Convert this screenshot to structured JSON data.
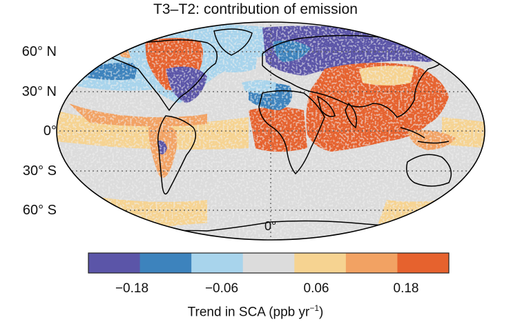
{
  "title": "T3–T2: contribution of emission",
  "lat_labels": [
    "60° N",
    "30° N",
    "0°",
    "30° S",
    "60° S"
  ],
  "lon_label": "0°",
  "colorbar": {
    "colors": [
      "#5b55a8",
      "#3d83bd",
      "#a8d4ec",
      "#dcdcdc",
      "#f6d391",
      "#f2a263",
      "#e6622e"
    ],
    "tick_labels": [
      "−0.18",
      "−0.06",
      "0.06",
      "0.18"
    ],
    "label_main": "Trend in SCA (ppb yr",
    "label_sup": "−1",
    "label_end": ")"
  }
}
